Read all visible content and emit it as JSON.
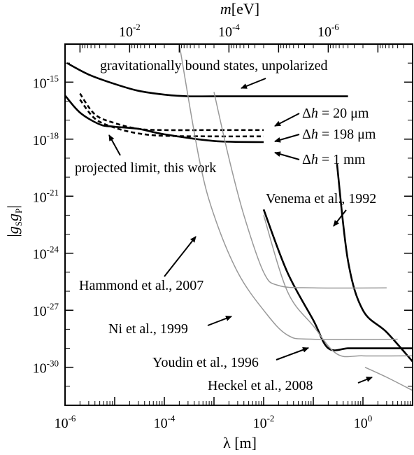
{
  "chart_data": {
    "type": "line",
    "title": "",
    "xlabel": "λ [m]",
    "ylabel": "|gSgP|",
    "top_xlabel": "m[eV]",
    "x_scale": "log",
    "y_scale": "log",
    "xlim": [
      1e-06,
      10
    ],
    "ylim": [
      1e-32,
      1e-13
    ],
    "top_xlim": [
      0.2,
      2e-08
    ],
    "grid": false,
    "x_ticks": [
      {
        "value": 1e-06,
        "label": "10",
        "exp": "-6"
      },
      {
        "value": 0.0001,
        "label": "10",
        "exp": "-4"
      },
      {
        "value": 0.01,
        "label": "10",
        "exp": "-2"
      },
      {
        "value": 1,
        "label": "10",
        "exp": "0"
      }
    ],
    "top_ticks": [
      {
        "value": 0.01,
        "label": "10",
        "exp": "-2"
      },
      {
        "value": 0.0001,
        "label": "10",
        "exp": "-4"
      },
      {
        "value": 1e-06,
        "label": "10",
        "exp": "-6"
      }
    ],
    "y_ticks": [
      {
        "value": 1e-15,
        "label": "10",
        "exp": "-15"
      },
      {
        "value": 1e-18,
        "label": "10",
        "exp": "-18"
      },
      {
        "value": 1e-21,
        "label": "10",
        "exp": "-21"
      },
      {
        "value": 1e-24,
        "label": "10",
        "exp": "-24"
      },
      {
        "value": 1e-27,
        "label": "10",
        "exp": "-27"
      },
      {
        "value": 1e-30,
        "label": "10",
        "exp": "-30"
      }
    ],
    "series": [
      {
        "name": "gravitationally bound states, unpolarized",
        "color": "#000000",
        "style": "solid",
        "width": 2.6,
        "points": [
          [
            1.1e-06,
            1e-14
          ],
          [
            3e-06,
            2.5e-15
          ],
          [
            1e-05,
            8e-16
          ],
          [
            3e-05,
            3.5e-16
          ],
          [
            0.0001,
            2.2e-16
          ],
          [
            0.0003,
            1.8e-16
          ],
          [
            0.001,
            1.8e-16
          ],
          [
            0.01,
            1.8e-16
          ],
          [
            0.1,
            1.8e-16
          ],
          [
            0.5,
            1.8e-16
          ]
        ]
      },
      {
        "name": "Δh = 20 μm",
        "color": "#000000",
        "style": "dashed",
        "width": 2.6,
        "points": [
          [
            2e-06,
            2.5e-16
          ],
          [
            4e-06,
            2e-17
          ],
          [
            1e-05,
            7e-18
          ],
          [
            3e-05,
            3.5e-18
          ],
          [
            0.0001,
            3e-18
          ],
          [
            0.001,
            3e-18
          ],
          [
            0.01,
            3e-18
          ]
        ]
      },
      {
        "name": "Δh = 198 μm",
        "color": "#000000",
        "style": "dashed",
        "width": 2.6,
        "points": [
          [
            2e-06,
            1.2e-16
          ],
          [
            4e-06,
            1.2e-17
          ],
          [
            1e-05,
            4e-18
          ],
          [
            3e-05,
            2e-18
          ],
          [
            0.0001,
            1.5e-18
          ],
          [
            0.001,
            1.4e-18
          ],
          [
            0.01,
            1.4e-18
          ]
        ]
      },
      {
        "name": "Δh = 1 mm",
        "color": "#000000",
        "style": "solid",
        "width": 2.6,
        "points": [
          [
            1e-06,
            2e-16
          ],
          [
            2e-06,
            2.5e-17
          ],
          [
            5e-06,
            6e-18
          ],
          [
            1e-05,
            4.5e-18
          ],
          [
            3e-05,
            3.5e-18
          ],
          [
            0.0001,
            1.8e-18
          ],
          [
            0.001,
            8e-19
          ],
          [
            0.01,
            7e-19
          ]
        ]
      },
      {
        "name": "Venema et al., 1992",
        "color": "#000000",
        "style": "solid",
        "width": 2.6,
        "points": [
          [
            0.3,
            5e-20
          ],
          [
            0.5,
            4e-25
          ],
          [
            1,
            1e-27
          ],
          [
            3,
            7e-29
          ],
          [
            10,
            2e-30
          ]
        ]
      },
      {
        "name": "Youdin et al., 1996",
        "color": "#000000",
        "style": "solid",
        "width": 2.6,
        "points": [
          [
            0.01,
            2e-22
          ],
          [
            0.03,
            1e-25
          ],
          [
            0.1,
            3e-28
          ],
          [
            0.2,
            1e-29
          ],
          [
            0.5,
            1e-29
          ],
          [
            1,
            1e-29
          ],
          [
            10,
            1e-29
          ]
        ]
      },
      {
        "name": "Hammond et al., 2007",
        "color": "#999999",
        "style": "solid",
        "width": 1.5,
        "points": [
          [
            0.001,
            3e-16
          ],
          [
            0.002,
            1e-19
          ],
          [
            0.004,
            1e-22
          ],
          [
            0.01,
            1e-25
          ],
          [
            0.02,
            2e-26
          ],
          [
            0.1,
            1.5e-26
          ],
          [
            3,
            1.5e-26
          ]
        ]
      },
      {
        "name": "Ni et al., 1999",
        "color": "#999999",
        "style": "solid",
        "width": 1.5,
        "points": [
          [
            0.0002,
            1e-13
          ],
          [
            0.0005,
            1e-19
          ],
          [
            0.001,
            1e-22
          ],
          [
            0.003,
            1e-25
          ],
          [
            0.01,
            1e-27
          ],
          [
            0.03,
            5e-29
          ],
          [
            0.1,
            3e-29
          ],
          [
            5,
            3e-29
          ]
        ]
      },
      {
        "name": "Youdin et al., 1996 (gray)",
        "color": "#999999",
        "style": "solid",
        "width": 1.5,
        "points": [
          [
            0.01,
            1e-22
          ],
          [
            0.03,
            1e-26
          ],
          [
            0.1,
            1.5e-28
          ],
          [
            0.3,
            5e-30
          ],
          [
            1,
            4e-30
          ],
          [
            10,
            4e-30
          ]
        ]
      },
      {
        "name": "Heckel et al., 2008",
        "color": "#999999",
        "style": "solid",
        "width": 1.5,
        "points": [
          [
            1.1,
            1e-30
          ],
          [
            3,
            3e-31
          ],
          [
            10,
            6e-32
          ]
        ]
      }
    ],
    "annotations": [
      {
        "text": "gravitationally bound states, unpolarized"
      },
      {
        "text": "Δh = 20 μm"
      },
      {
        "text": "Δh = 198 μm"
      },
      {
        "text": "Δh = 1 mm"
      },
      {
        "text": "projected limit, this work"
      },
      {
        "text": "Venema et al., 1992"
      },
      {
        "text": "Hammond et al., 2007"
      },
      {
        "text": "Ni et al., 1999"
      },
      {
        "text": "Youdin et al., 1996"
      },
      {
        "text": "Heckel et al., 2008"
      }
    ]
  }
}
